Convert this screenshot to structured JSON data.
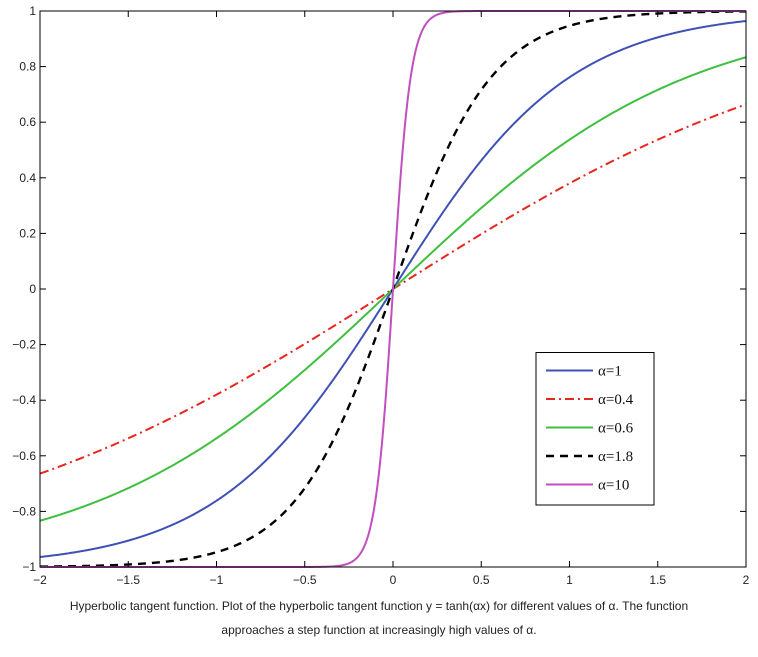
{
  "chart_data": {
    "type": "line",
    "title": "",
    "xlabel": "",
    "ylabel": "",
    "xlim": [
      -2,
      2
    ],
    "ylim": [
      -1,
      1
    ],
    "xticks": [
      -2,
      -1.5,
      -1,
      -0.5,
      0,
      0.5,
      1,
      1.5,
      2
    ],
    "xtick_labels": [
      "−2",
      "−1.5",
      "−1",
      "−0.5",
      "0",
      "0.5",
      "1",
      "1.5",
      "2"
    ],
    "yticks": [
      1,
      0.8,
      0.6,
      0.4,
      0.2,
      0,
      -0.2,
      -0.4,
      -0.6,
      -0.8,
      -1
    ],
    "ytick_labels": [
      "1",
      "0.8",
      "0.6",
      "0.4",
      "0.2",
      "0",
      "−0.2",
      "−0.4",
      "−0.6",
      "−0.8",
      "−1"
    ],
    "grid": false,
    "legend_position": "lower-right",
    "function": "y = tanh(αx)",
    "series": [
      {
        "name": "α=1",
        "alpha": 1,
        "color": "#3f51b5",
        "style": "solid"
      },
      {
        "name": "α=0.4",
        "alpha": 0.4,
        "color": "#e8251f",
        "style": "dashdot"
      },
      {
        "name": "α=0.6",
        "alpha": 0.6,
        "color": "#3fbf3f",
        "style": "solid"
      },
      {
        "name": "α=1.8",
        "alpha": 1.8,
        "color": "#000000",
        "style": "dashed"
      },
      {
        "name": "α=10",
        "alpha": 10,
        "color": "#c04fbf",
        "style": "solid"
      }
    ]
  },
  "caption": {
    "line1": "Hyperbolic tangent function. Plot of the hyperbolic tangent function y = tanh(αx) for different values of α. The function",
    "line2": "approaches a step function at increasingly high values of α."
  }
}
